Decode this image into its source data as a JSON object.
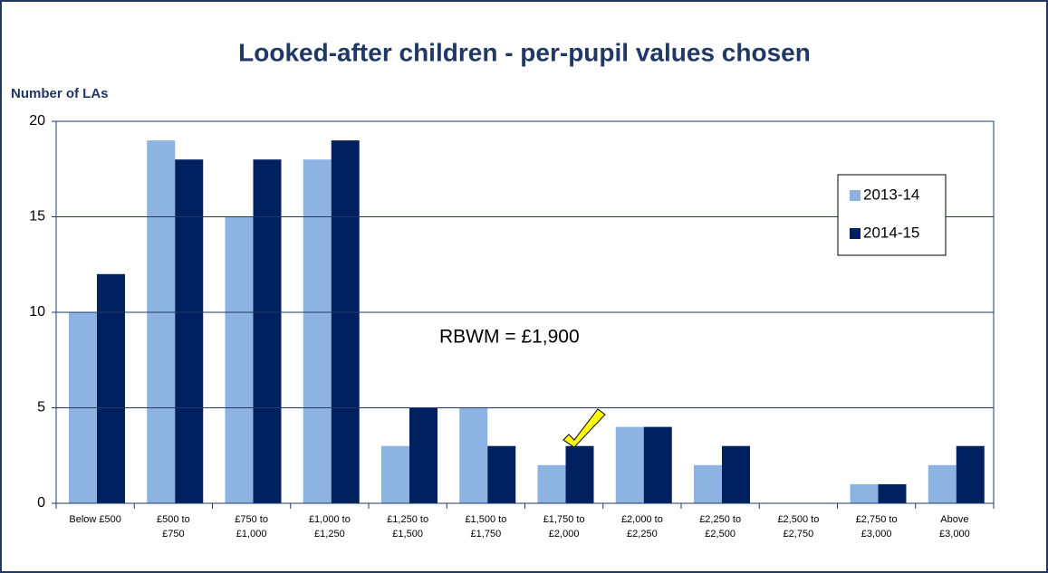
{
  "chart_data": {
    "type": "bar",
    "title": "Looked-after children - per-pupil values chosen",
    "y_label": "Number of LAs",
    "annotation": "RBWM = £1,900",
    "categories": [
      "Below £500",
      "£500 to £750",
      "£750 to £1,000",
      "£1,000 to £1,250",
      "£1,250 to £1,500",
      "£1,500 to £1,750",
      "£1,750 to £2,000",
      "£2,000 to £2,250",
      "£2,250 to £2,500",
      "£2,500 to £2,750",
      "£2,750 to £3,000",
      "Above £3,000"
    ],
    "series": [
      {
        "name": "2013-14",
        "color": "#8db3e2",
        "values": [
          10,
          19,
          15,
          18,
          3,
          5,
          2,
          4,
          2,
          0,
          1,
          2
        ]
      },
      {
        "name": "2014-15",
        "color": "#002060",
        "values": [
          12,
          18,
          18,
          19,
          5,
          3,
          3,
          4,
          3,
          0,
          1,
          3
        ]
      }
    ],
    "ylim": [
      0,
      20
    ],
    "yticks": [
      0,
      5,
      10,
      15,
      20
    ],
    "grid": true,
    "legend": "upper right"
  }
}
